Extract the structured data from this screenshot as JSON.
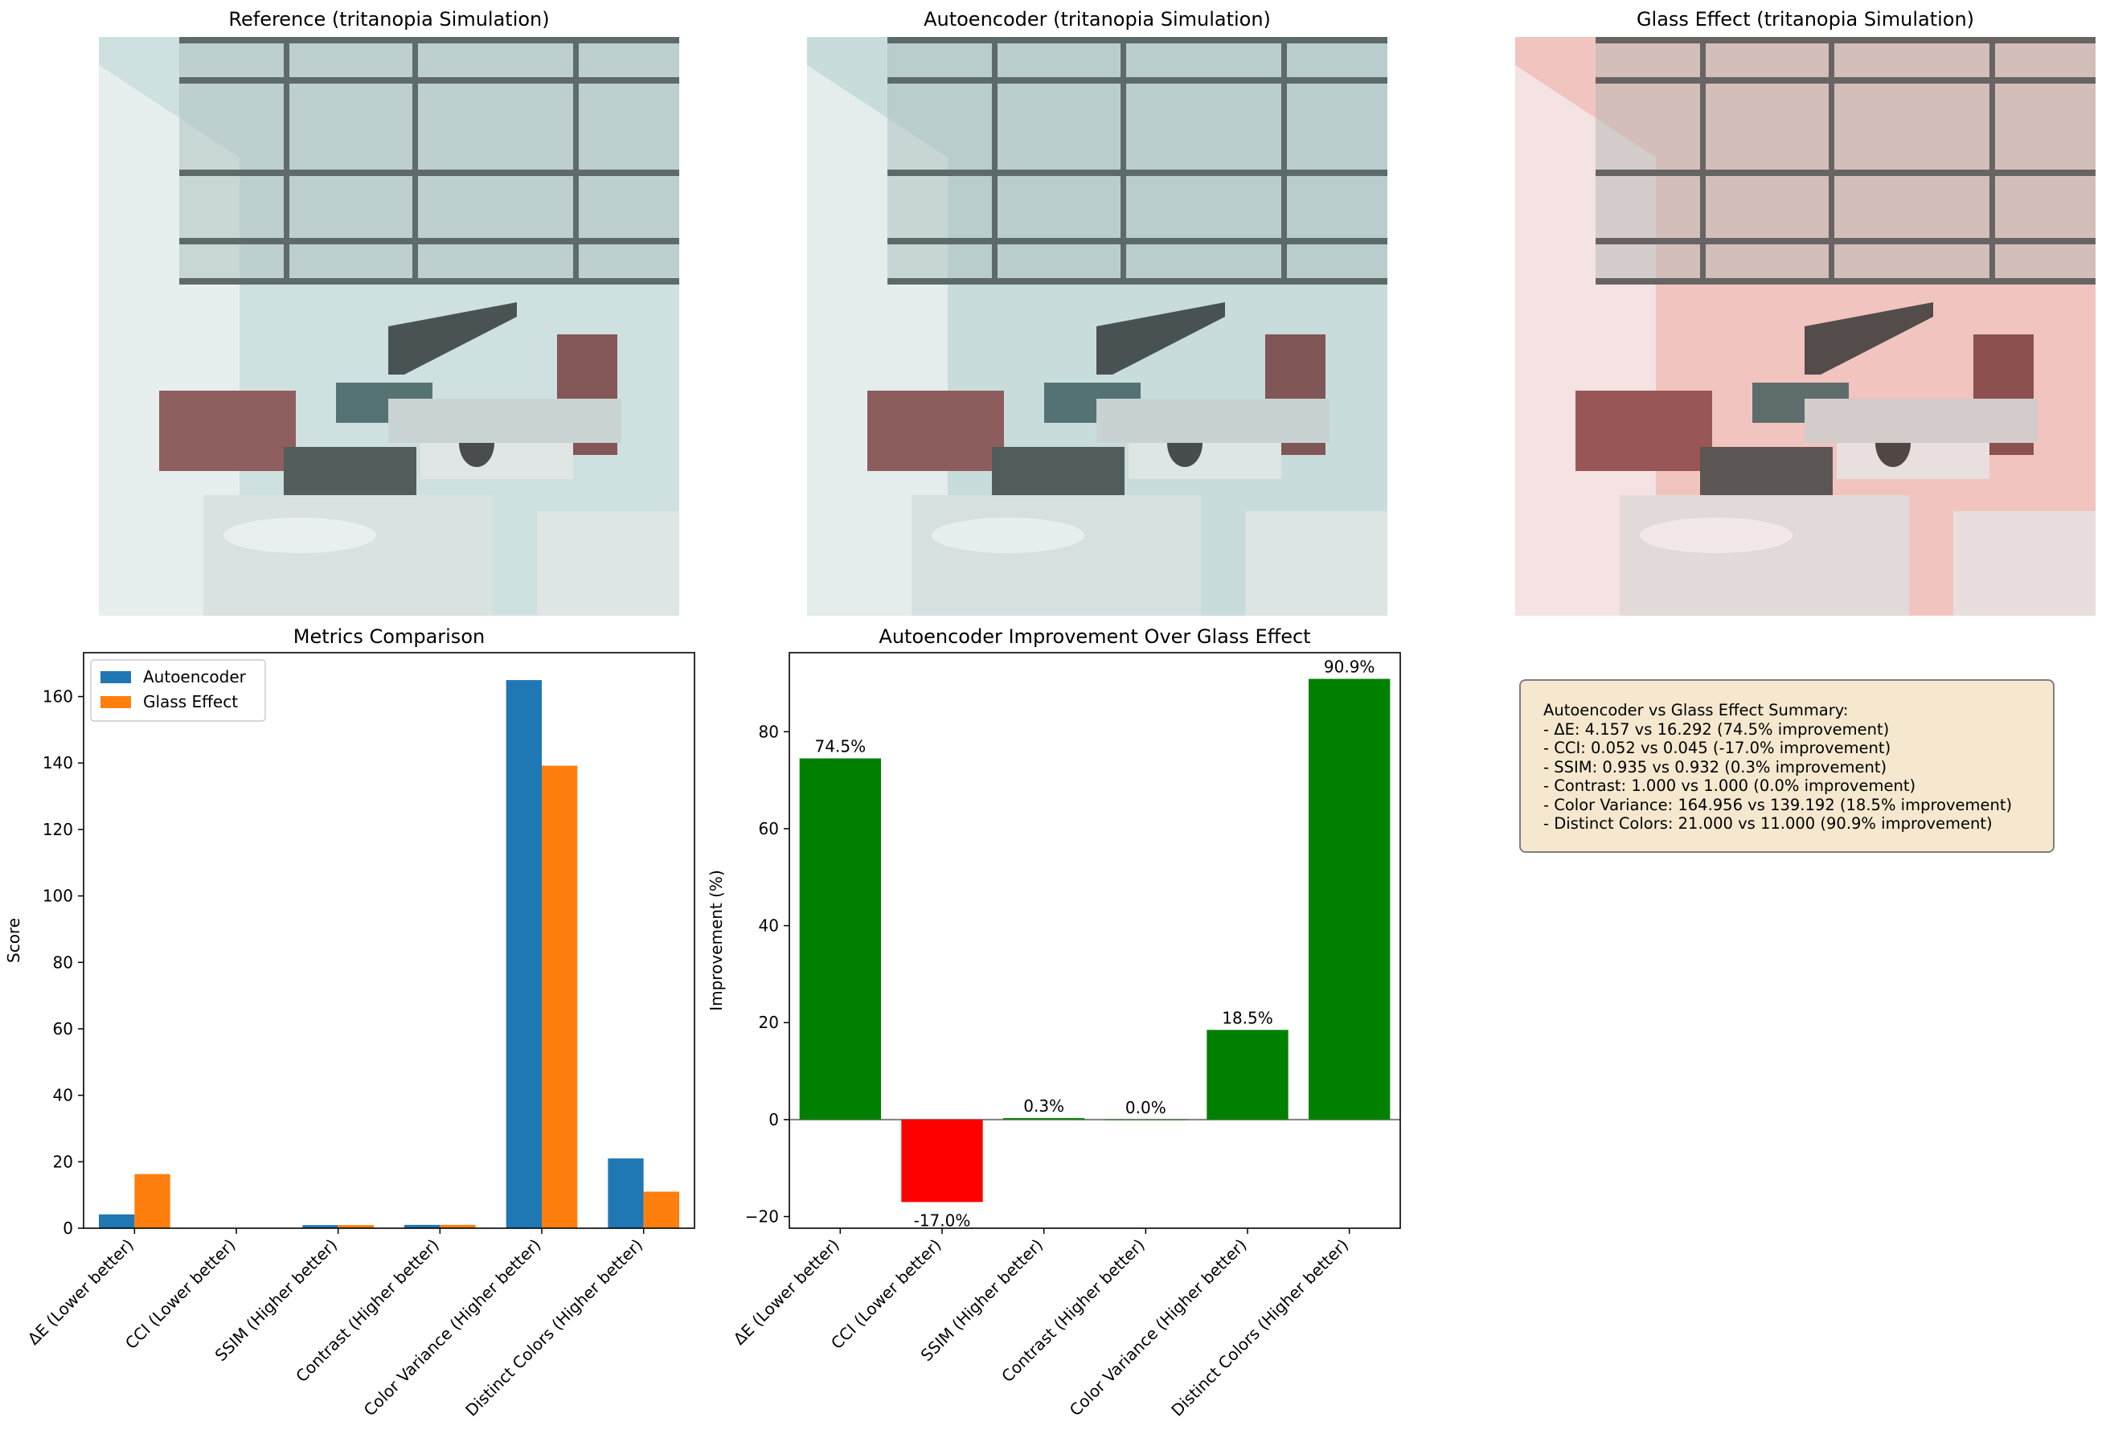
{
  "panels": {
    "reference_title": "Reference (tritanopia Simulation)",
    "autoencoder_title": "Autoencoder (tritanopia Simulation)",
    "glass_title": "Glass Effect (tritanopia Simulation)",
    "photo_tint": {
      "reference": "#cfe0e0",
      "autoencoder": "#c9dcdc",
      "glass": "#f2c4bf"
    }
  },
  "chart_data": [
    {
      "type": "bar",
      "title": "Metrics Comparison",
      "xlabel": "",
      "ylabel": "Score",
      "categories": [
        "ΔE (Lower better)",
        "CCI (Lower better)",
        "SSIM (Higher better)",
        "Contrast (Higher better)",
        "Color Variance (Higher better)",
        "Distinct Colors (Higher better)"
      ],
      "series": [
        {
          "name": "Autoencoder",
          "color": "#1f77b4",
          "values": [
            4.157,
            0.052,
            0.935,
            1.0,
            164.956,
            21.0
          ]
        },
        {
          "name": "Glass Effect",
          "color": "#ff7f0e",
          "values": [
            16.292,
            0.045,
            0.932,
            1.0,
            139.192,
            11.0
          ]
        }
      ],
      "ylim": [
        0,
        173.2
      ],
      "yticks": [
        0,
        20,
        40,
        60,
        80,
        100,
        120,
        140,
        160
      ],
      "legend": "top-left",
      "grid": false
    },
    {
      "type": "bar",
      "title": "Autoencoder Improvement Over Glass Effect",
      "xlabel": "",
      "ylabel": "Improvement (%)",
      "categories": [
        "ΔE (Lower better)",
        "CCI (Lower better)",
        "SSIM (Higher better)",
        "Contrast (Higher better)",
        "Color Variance (Higher better)",
        "Distinct Colors (Higher better)"
      ],
      "values": [
        74.5,
        -17.0,
        0.3,
        0.0,
        18.5,
        90.9
      ],
      "data_labels": [
        "74.5%",
        "-17.0%",
        "0.3%",
        "0.0%",
        "18.5%",
        "90.9%"
      ],
      "positive_color": "#008000",
      "negative_color": "#ff0000",
      "ylim": [
        -22.4,
        96.3
      ],
      "yticks": [
        -20,
        0,
        20,
        40,
        60,
        80
      ],
      "grid": false
    }
  ],
  "summary": {
    "lines": [
      "Autoencoder vs Glass Effect Summary:",
      "- ΔE: 4.157 vs 16.292 (74.5% improvement)",
      "- CCI: 0.052 vs 0.045 (-17.0% improvement)",
      "- SSIM: 0.935 vs 0.932 (0.3% improvement)",
      "- Contrast: 1.000 vs 1.000 (0.0% improvement)",
      "- Color Variance: 164.956 vs 139.192 (18.5% improvement)",
      "- Distinct Colors: 21.000 vs 11.000 (90.9% improvement)"
    ]
  }
}
